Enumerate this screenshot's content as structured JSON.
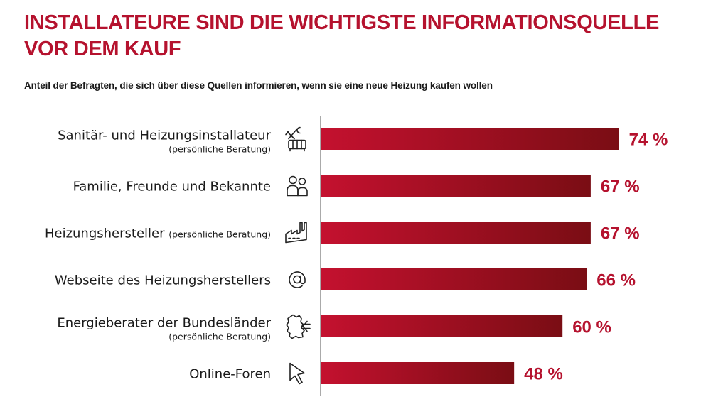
{
  "title": "INSTALLATEURE SIND DIE WICHTIGSTE INFORMATIONSQUELLE VOR DEM KAUF",
  "subtitle": "Anteil der Befragten, die sich über diese Quellen informieren, wenn sie eine neue Heizung kaufen wollen",
  "colors": {
    "accent": "#b5122e",
    "bar_start": "#c4112f",
    "bar_end": "#7a0d14",
    "text": "#1a1a1a"
  },
  "chart_data": {
    "type": "bar",
    "orientation": "horizontal",
    "value_suffix": " %",
    "xlim": [
      0,
      100
    ],
    "grid": false,
    "categories": [
      {
        "label": "Sanitär- und Heizungsinstallateur",
        "note": "(persönliche Beratung)",
        "note_position": "below",
        "icon": "tools-radiator-icon",
        "value": 74
      },
      {
        "label": "Familie, Freunde und Bekannte",
        "note": "",
        "note_position": "none",
        "icon": "people-icon",
        "value": 67
      },
      {
        "label": "Heizungshersteller",
        "note": "(persönliche Beratung)",
        "note_position": "inline",
        "icon": "factory-icon",
        "value": 67
      },
      {
        "label": "Webseite des Heizungsherstellers",
        "note": "",
        "note_position": "none",
        "icon": "at-sign-icon",
        "value": 66
      },
      {
        "label": "Energieberater der Bundesländer",
        "note": "(persönliche Beratung)",
        "note_position": "below",
        "icon": "germany-map-icon",
        "value": 60
      },
      {
        "label": "Online-Foren",
        "note": "",
        "note_position": "none",
        "icon": "cursor-icon",
        "value": 48
      }
    ]
  }
}
